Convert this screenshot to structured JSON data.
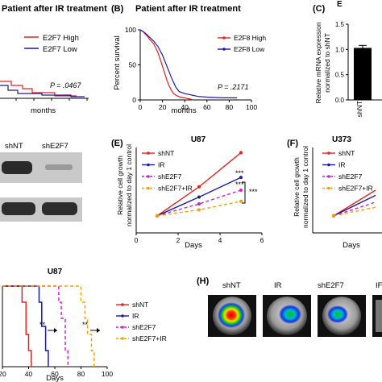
{
  "figure": {
    "panels": {
      "a": {
        "title": "Patient after IR treatment",
        "p_value": "P = .0467",
        "xlabel": "months",
        "legend": [
          "E2F7 High",
          "E2F7 Low"
        ]
      },
      "b": {
        "letter": "(B)",
        "title": "Patient after IR treatment",
        "p_value": "P = .2171",
        "xlabel": "months",
        "ylabel": "Percent survival",
        "legend": [
          "E2F8 High",
          "E2F8 Low"
        ]
      },
      "c": {
        "letter": "(C)",
        "title_fragment": "E",
        "ylabel_line1": "Relative mRNA expression",
        "ylabel_line2": "normalized to shNT",
        "xtick": "shNT"
      },
      "d": {
        "lanes": [
          "shNT",
          "shE2F7"
        ]
      },
      "e": {
        "letter": "(E)",
        "title": "U87",
        "xlabel": "Days",
        "ylabel_line1": "Relative cell growth",
        "ylabel_line2": "normalized to day 1 control",
        "significance": [
          "***",
          "***",
          "***"
        ]
      },
      "f": {
        "letter": "(F)",
        "title": "U373",
        "xlabel": "Days",
        "ylabel_line1": "Relative cell growth",
        "ylabel_line2": "normalized to day 1 control"
      },
      "g": {
        "title": "U87",
        "xlabel": "Days",
        "significance": [
          "**",
          "**"
        ]
      },
      "h": {
        "letter": "(H)",
        "labels": [
          "shNT",
          "IR",
          "shE2F7",
          "IF"
        ]
      }
    }
  },
  "colors": {
    "red": "#e8211c",
    "blue": "#1a1aa8",
    "magenta": "#cc22cc",
    "orange": "#f5a000"
  },
  "chart_data": [
    {
      "type": "line",
      "id": "b",
      "title": "Patient after IR treatment",
      "xlabel": "months",
      "ylabel": "Percent survival",
      "xlim": [
        0,
        100
      ],
      "ylim": [
        0,
        100
      ],
      "xticks": [
        0,
        20,
        40,
        60,
        80,
        100
      ],
      "yticks": [
        0,
        50,
        100
      ],
      "series": [
        {
          "name": "E2F8 High",
          "color": "#e8211c",
          "x": [
            0,
            3,
            5,
            7,
            8,
            10,
            12,
            14,
            16,
            18,
            20,
            22,
            24,
            26,
            28,
            30,
            33,
            36,
            40,
            48
          ],
          "y": [
            100,
            97,
            93,
            90,
            87,
            84,
            80,
            74,
            67,
            58,
            48,
            38,
            28,
            20,
            14,
            9,
            6,
            4,
            3,
            0
          ]
        },
        {
          "name": "E2F8 Low",
          "color": "#1a1aa8",
          "x": [
            0,
            4,
            6,
            8,
            10,
            12,
            14,
            16,
            18,
            20,
            22,
            24,
            26,
            28,
            30,
            32,
            35,
            40,
            46,
            52,
            60,
            75,
            87
          ],
          "y": [
            100,
            96,
            93,
            90,
            87,
            84,
            80,
            76,
            70,
            64,
            56,
            48,
            40,
            32,
            25,
            18,
            12,
            9,
            7,
            5,
            4,
            3,
            3
          ]
        }
      ]
    },
    {
      "type": "bar",
      "id": "c",
      "categories": [
        "shNT"
      ],
      "values": [
        1.03
      ],
      "error": [
        0.05
      ],
      "ylabel": "Relative mRNA expression normalized to shNT",
      "ylim": [
        0,
        1.5
      ],
      "yticks": [
        0.0,
        0.5,
        1.0,
        1.5
      ]
    },
    {
      "type": "line",
      "id": "e",
      "title": "U87",
      "xlabel": "Days",
      "ylabel": "Relative cell growth normalized to day 1 control",
      "xlim": [
        0,
        6
      ],
      "ylim": [
        0,
        5
      ],
      "xticks": [
        0,
        2,
        4,
        6
      ],
      "series": [
        {
          "name": "shNT",
          "color": "#e8211c",
          "dash": false,
          "x": [
            1,
            3,
            5
          ],
          "y": [
            1.0,
            2.7,
            4.7
          ]
        },
        {
          "name": "IR",
          "color": "#1a1aa8",
          "dash": false,
          "x": [
            1,
            3,
            5
          ],
          "y": [
            1.0,
            2.1,
            3.25
          ]
        },
        {
          "name": "shE2F7",
          "color": "#cc22cc",
          "dash": true,
          "x": [
            1,
            3,
            5
          ],
          "y": [
            1.0,
            1.7,
            2.5
          ]
        },
        {
          "name": "shE2F7+IR",
          "color": "#f5a000",
          "dash": true,
          "x": [
            1,
            3,
            5
          ],
          "y": [
            1.0,
            1.35,
            1.85
          ]
        }
      ]
    },
    {
      "type": "line",
      "id": "f",
      "title": "U373",
      "xlabel": "Days",
      "ylabel": "Relative cell growth normalized to day 1 control",
      "xlim": [
        0,
        6
      ],
      "ylim": [
        0,
        5
      ],
      "series": [
        {
          "name": "shNT",
          "color": "#e8211c",
          "dash": false,
          "x": [
            1,
            3
          ],
          "y": [
            1.0,
            2.5
          ]
        },
        {
          "name": "IR",
          "color": "#1a1aa8",
          "dash": false,
          "x": [
            1,
            3
          ],
          "y": [
            1.0,
            2.2
          ]
        },
        {
          "name": "shE2F7",
          "color": "#cc22cc",
          "dash": true,
          "x": [
            1,
            3
          ],
          "y": [
            1.0,
            1.8
          ]
        },
        {
          "name": "shE2F7+IR",
          "color": "#f5a000",
          "dash": true,
          "x": [
            1,
            3
          ],
          "y": [
            1.0,
            1.5
          ]
        }
      ]
    },
    {
      "type": "line",
      "id": "g",
      "title": "U87",
      "xlabel": "Days",
      "xlim": [
        20,
        100
      ],
      "ylim": [
        0,
        100
      ],
      "xticks": [
        20,
        40,
        60,
        80,
        100
      ],
      "series": [
        {
          "name": "shNT",
          "color": "#e8211c",
          "dash": false,
          "x": [
            20,
            35,
            35,
            38,
            38,
            40,
            40,
            42,
            42
          ],
          "y": [
            100,
            100,
            80,
            80,
            40,
            40,
            20,
            20,
            0
          ]
        },
        {
          "name": "IR",
          "color": "#1a1aa8",
          "dash": false,
          "x": [
            20,
            48,
            48,
            50,
            50,
            53,
            53,
            55,
            55
          ],
          "y": [
            100,
            100,
            80,
            80,
            50,
            50,
            20,
            20,
            0
          ]
        },
        {
          "name": "shE2F7",
          "color": "#cc22cc",
          "dash": true,
          "x": [
            20,
            63,
            63,
            65,
            65,
            68,
            68,
            70,
            70
          ],
          "y": [
            100,
            100,
            80,
            80,
            60,
            60,
            20,
            20,
            0
          ]
        },
        {
          "name": "shE2F7+IR",
          "color": "#f5a000",
          "dash": true,
          "x": [
            20,
            80,
            80,
            83,
            83,
            85,
            85,
            88,
            88,
            90,
            90
          ],
          "y": [
            100,
            100,
            80,
            80,
            60,
            60,
            40,
            40,
            20,
            20,
            0
          ]
        }
      ]
    }
  ]
}
